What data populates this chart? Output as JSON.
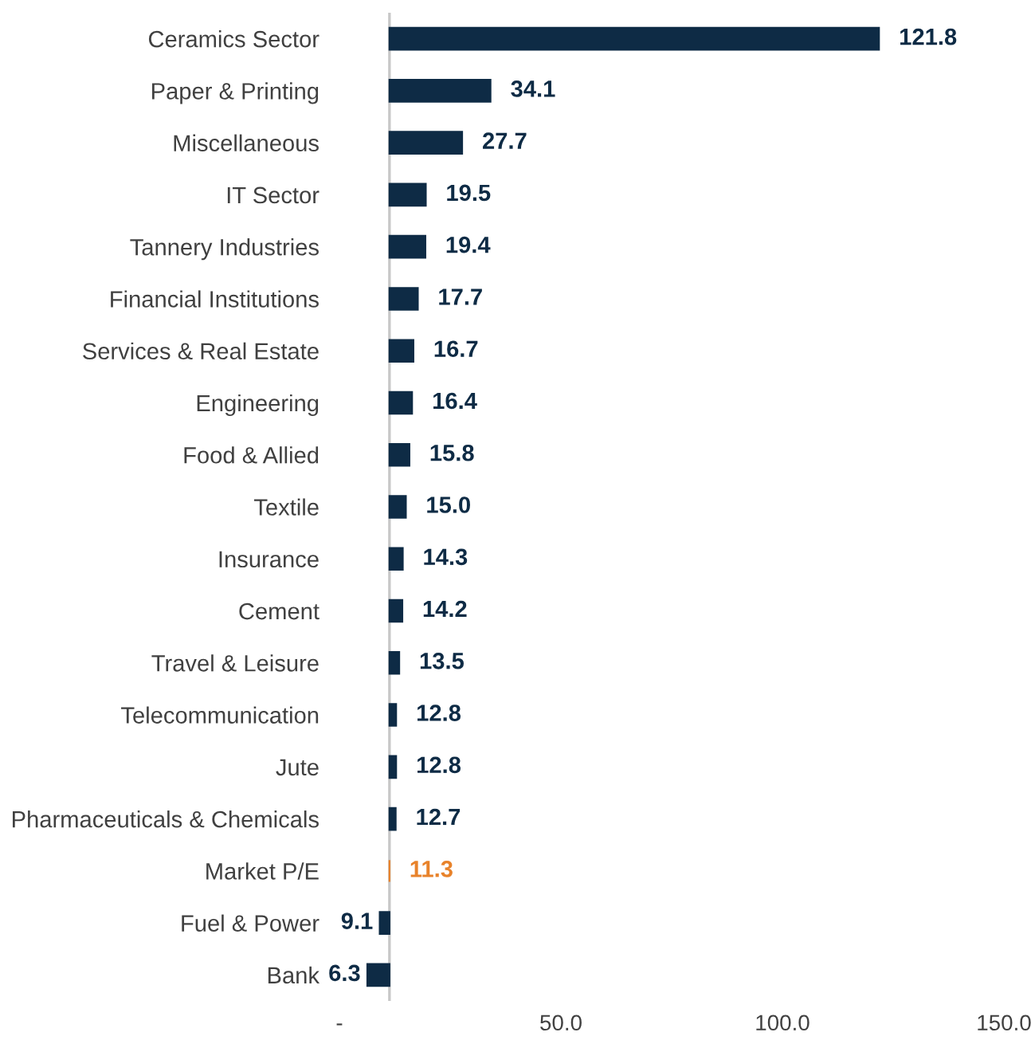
{
  "chart_data": {
    "type": "bar",
    "orientation": "horizontal",
    "categories": [
      "Ceramics Sector",
      "Paper & Printing",
      "Miscellaneous",
      "IT Sector",
      "Tannery Industries",
      "Financial Institutions",
      "Services & Real Estate",
      "Engineering",
      "Food & Allied",
      "Textile",
      "Insurance",
      "Cement",
      "Travel & Leisure",
      "Telecommunication",
      "Jute",
      "Pharmaceuticals & Chemicals",
      "Market P/E",
      "Fuel & Power",
      "Bank"
    ],
    "base": [
      11.3,
      11.3,
      11.3,
      11.3,
      11.3,
      11.3,
      11.3,
      11.3,
      11.3,
      11.3,
      11.3,
      11.3,
      11.3,
      11.3,
      11.3,
      11.3,
      11.3,
      11.3,
      11.3
    ],
    "values": [
      110.5,
      22.8,
      16.4,
      8.2,
      8.1,
      6.4,
      5.4,
      5.1,
      4.5,
      3.7,
      3.0,
      2.9,
      2.2,
      1.5,
      1.5,
      1.4,
      0,
      -2.2,
      -5.0
    ],
    "value_labels": [
      "121.8",
      "34.1",
      "27.7",
      "19.5",
      "19.4",
      "17.7",
      "16.7",
      "16.4",
      "15.8",
      "15.0",
      "14.3",
      "14.2",
      "13.5",
      "12.8",
      "12.8",
      "12.7",
      "11.3",
      "9.1",
      "6.3"
    ],
    "colors": [
      "#0e2b45",
      "#0e2b45",
      "#0e2b45",
      "#0e2b45",
      "#0e2b45",
      "#0e2b45",
      "#0e2b45",
      "#0e2b45",
      "#0e2b45",
      "#0e2b45",
      "#0e2b45",
      "#0e2b45",
      "#0e2b45",
      "#0e2b45",
      "#0e2b45",
      "#0e2b45",
      "#e8822a",
      "#0e2b45",
      "#0e2b45"
    ],
    "xlim": [
      0,
      150
    ],
    "xticks": [
      {
        "value": 0,
        "label": "-"
      },
      {
        "value": 50,
        "label": "50.0"
      },
      {
        "value": 100,
        "label": "100.0"
      },
      {
        "value": 150,
        "label": "150.0"
      }
    ],
    "ref_lines": [
      {
        "axis": "x",
        "value": 11.3,
        "color": "#c8c8c8"
      }
    ],
    "grid": false,
    "legend": false
  }
}
